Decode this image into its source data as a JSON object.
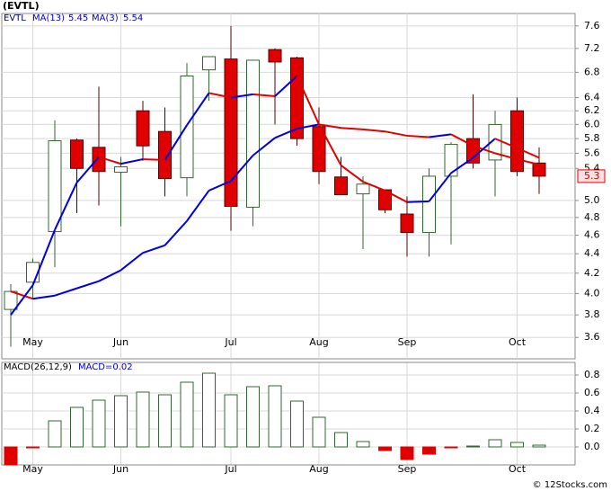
{
  "chart_data": [
    {
      "type": "candlestick",
      "title": "(EVTL)",
      "legend": "EVTL",
      "categories": [
        null,
        "May",
        null,
        null,
        null,
        "Jun",
        null,
        null,
        null,
        null,
        "Jul",
        null,
        null,
        null,
        "Aug",
        null,
        null,
        null,
        "Sep",
        null,
        null,
        null,
        null,
        "Oct",
        null
      ],
      "open": [
        3.85,
        4.11,
        4.64,
        5.78,
        5.68,
        5.35,
        6.2,
        5.9,
        5.28,
        6.84,
        7.02,
        4.92,
        7.18,
        7.04,
        5.97,
        5.29,
        5.08,
        5.13,
        4.84,
        4.63,
        5.3,
        5.8,
        5.51,
        6.2,
        5.47
      ],
      "high": [
        4.09,
        4.35,
        6.06,
        5.8,
        6.57,
        5.55,
        6.35,
        6.25,
        6.95,
        7.06,
        7.6,
        7.0,
        7.2,
        7.06,
        6.25,
        5.55,
        5.3,
        5.13,
        5.05,
        5.4,
        5.75,
        6.45,
        6.2,
        6.4,
        5.68
      ],
      "low": [
        3.52,
        3.95,
        4.26,
        4.85,
        4.94,
        4.7,
        5.5,
        5.05,
        5.05,
        6.35,
        4.65,
        4.7,
        6.0,
        5.7,
        5.2,
        5.07,
        4.45,
        4.85,
        4.37,
        4.37,
        4.5,
        5.4,
        5.05,
        5.3,
        5.08
      ],
      "close": [
        4.02,
        4.31,
        5.77,
        5.4,
        5.36,
        5.42,
        5.7,
        5.27,
        6.74,
        7.06,
        4.93,
        7.0,
        6.97,
        5.8,
        5.36,
        5.07,
        5.2,
        4.89,
        4.63,
        5.3,
        5.72,
        5.47,
        6.0,
        5.36,
        5.3
      ],
      "up_color": "#ffffff",
      "down_color": "#e00000",
      "up_edge": "#336633",
      "down_edge": "#550000",
      "series": [
        {
          "name": "MA(13)",
          "values": [
            4.02,
            3.95,
            3.98,
            4.05,
            4.12,
            4.23,
            4.41,
            4.49,
            4.76,
            5.12,
            5.24,
            5.57,
            5.81,
            5.94,
            6.0,
            5.95,
            5.93,
            5.9,
            5.84,
            5.82,
            5.86,
            5.7,
            5.6,
            5.52,
            5.45
          ]
        },
        {
          "name": "MA(3)",
          "values": [
            3.8,
            4.08,
            4.66,
            5.22,
            5.55,
            5.46,
            5.52,
            5.51,
            5.99,
            6.47,
            6.4,
            6.45,
            6.42,
            6.74,
            6.0,
            5.44,
            5.23,
            5.12,
            4.98,
            4.99,
            5.34,
            5.54,
            5.8,
            5.67,
            5.54
          ]
        }
      ],
      "rising_color": "#0000dd",
      "falling_color": "#e00000",
      "scale": "log",
      "grid": true,
      "ylim": [
        3.42,
        7.83
      ],
      "yticks": [
        3.6,
        3.8,
        {
          "value": 4,
          "label": "4.0"
        },
        4.2,
        4.4,
        4.6,
        4.8,
        {
          "value": 5,
          "label": "5.0"
        },
        5.4,
        5.6,
        5.8,
        {
          "value": 6,
          "label": "6.0"
        },
        6.2,
        6.4,
        6.8,
        7.2,
        7.6
      ]
    },
    {
      "type": "bar",
      "title": "MACD(26,12,9)",
      "legend_label": "MACD=0.02",
      "values": [
        -0.2,
        -0.01,
        0.29,
        0.44,
        0.52,
        0.57,
        0.61,
        0.58,
        0.72,
        0.82,
        0.58,
        0.67,
        0.68,
        0.51,
        0.33,
        0.16,
        0.06,
        -0.04,
        -0.14,
        -0.08,
        -0.01,
        0.01,
        0.08,
        0.05,
        0.02
      ],
      "positive_color": "#ffffff",
      "negative_color": "#e00000",
      "edge_color": "#336633",
      "grid": true,
      "ylim": [
        -0.2,
        0.94
      ],
      "yticks": [
        {
          "value": 0,
          "label": "0.0"
        },
        0.2,
        0.4,
        0.6,
        0.8
      ]
    }
  ],
  "footer": "© 12Stocks.com"
}
